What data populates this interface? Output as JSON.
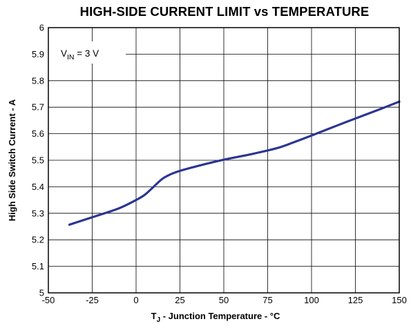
{
  "chart_data": {
    "type": "line",
    "title": "HIGH-SIDE CURRENT LIMIT vs TEMPERATURE",
    "xlabel": {
      "main": "T",
      "sub": "J",
      "rest": " - Junction Temperature - °C"
    },
    "ylabel": "High Side Switch Current - A",
    "xlim": [
      -50,
      150
    ],
    "ylim": [
      5,
      6
    ],
    "x_ticks": [
      -50,
      -25,
      0,
      25,
      50,
      75,
      100,
      125,
      150
    ],
    "y_ticks": [
      5,
      5.1,
      5.2,
      5.3,
      5.4,
      5.5,
      5.6,
      5.7,
      5.8,
      5.9,
      6
    ],
    "grid": true,
    "annotation": {
      "main": "V",
      "sub": "IN",
      "rest": " = 3 V"
    },
    "series": [
      {
        "color": "#2b3592",
        "x": [
          -38,
          -25,
          -10,
          0,
          5,
          10,
          15,
          20,
          25,
          35,
          50,
          65,
          80,
          90,
          100,
          115,
          130,
          140,
          150
        ],
        "y": [
          5.257,
          5.285,
          5.318,
          5.35,
          5.37,
          5.4,
          5.43,
          5.448,
          5.46,
          5.478,
          5.502,
          5.522,
          5.545,
          5.568,
          5.593,
          5.632,
          5.67,
          5.695,
          5.721
        ]
      }
    ]
  }
}
